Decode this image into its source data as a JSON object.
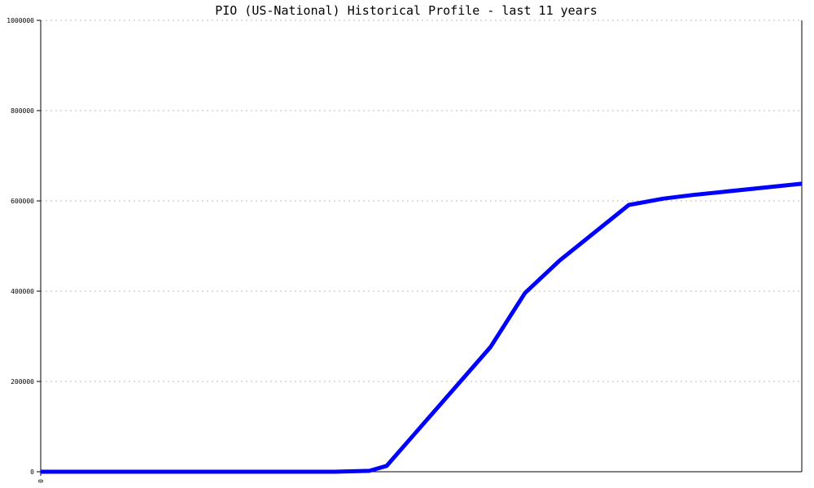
{
  "chart_data": {
    "type": "line",
    "title": "PIO (US-National) Historical Profile - last 11 years",
    "xlabel": "",
    "ylabel": "",
    "xlim": [
      0,
      132
    ],
    "ylim": [
      0,
      1000000
    ],
    "y_ticks": [
      "0",
      "200000",
      "400000",
      "600000",
      "800000",
      "1000000"
    ],
    "x_ticks": [
      "0"
    ],
    "grid": "horizontal dotted",
    "series": [
      {
        "color": "#0000ff",
        "x": [
          0,
          51,
          57,
          60,
          78,
          84,
          90,
          102,
          108,
          113,
          132
        ],
        "y": [
          0,
          0,
          2000,
          13000,
          276000,
          396000,
          468000,
          591000,
          605000,
          613000,
          638000
        ]
      }
    ]
  }
}
